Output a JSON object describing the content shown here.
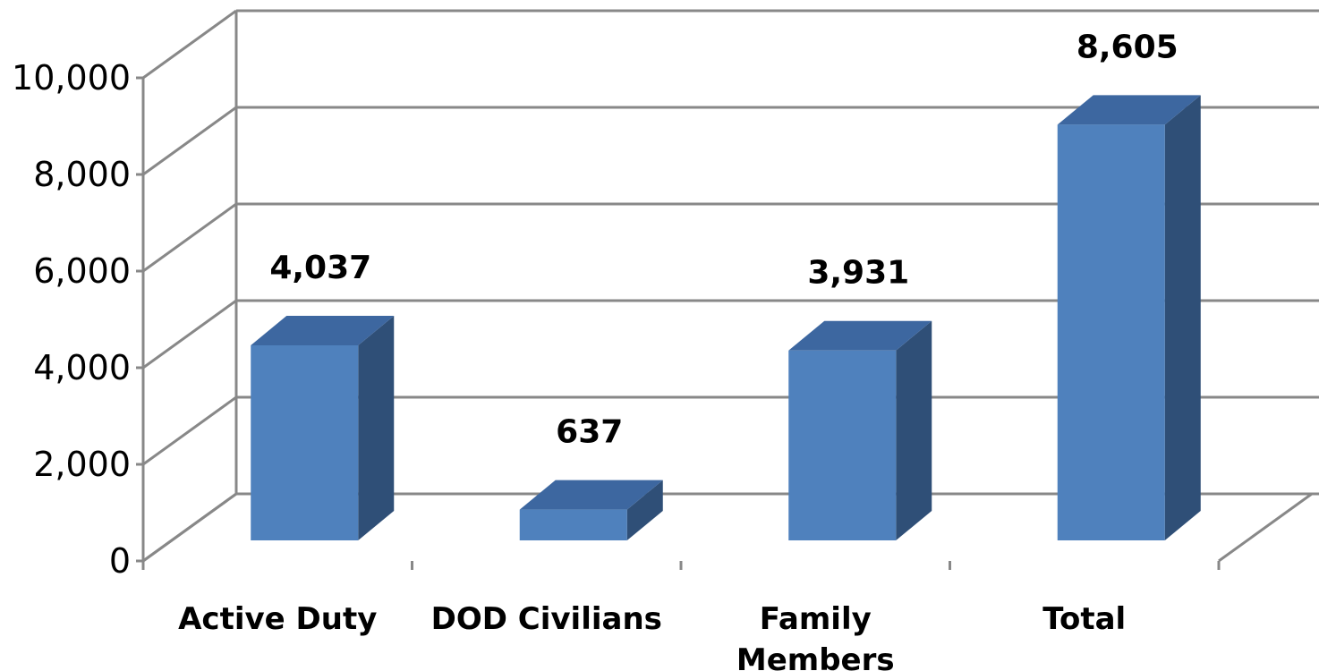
{
  "chart_data": {
    "type": "bar",
    "style": "3d-column",
    "categories": [
      "Active Duty",
      "DOD Civilians",
      "Family Members",
      "Total"
    ],
    "values": [
      4037,
      637,
      3931,
      8605
    ],
    "data_labels": [
      "4,037",
      "637",
      "3,931",
      "8,605"
    ],
    "title": "",
    "xlabel": "",
    "ylabel": "",
    "ylim": [
      0,
      10000
    ],
    "yticks": [
      0,
      2000,
      4000,
      6000,
      8000,
      10000
    ],
    "ytick_labels": [
      "0",
      "2,000",
      "4,000",
      "6,000",
      "8,000",
      "10,000"
    ],
    "grid": true,
    "legend": "none",
    "colors": {
      "bar_front": "#4F81BD",
      "bar_side": "#2F4F77",
      "bar_top": "#3D67A0",
      "grid": "#888888"
    }
  }
}
